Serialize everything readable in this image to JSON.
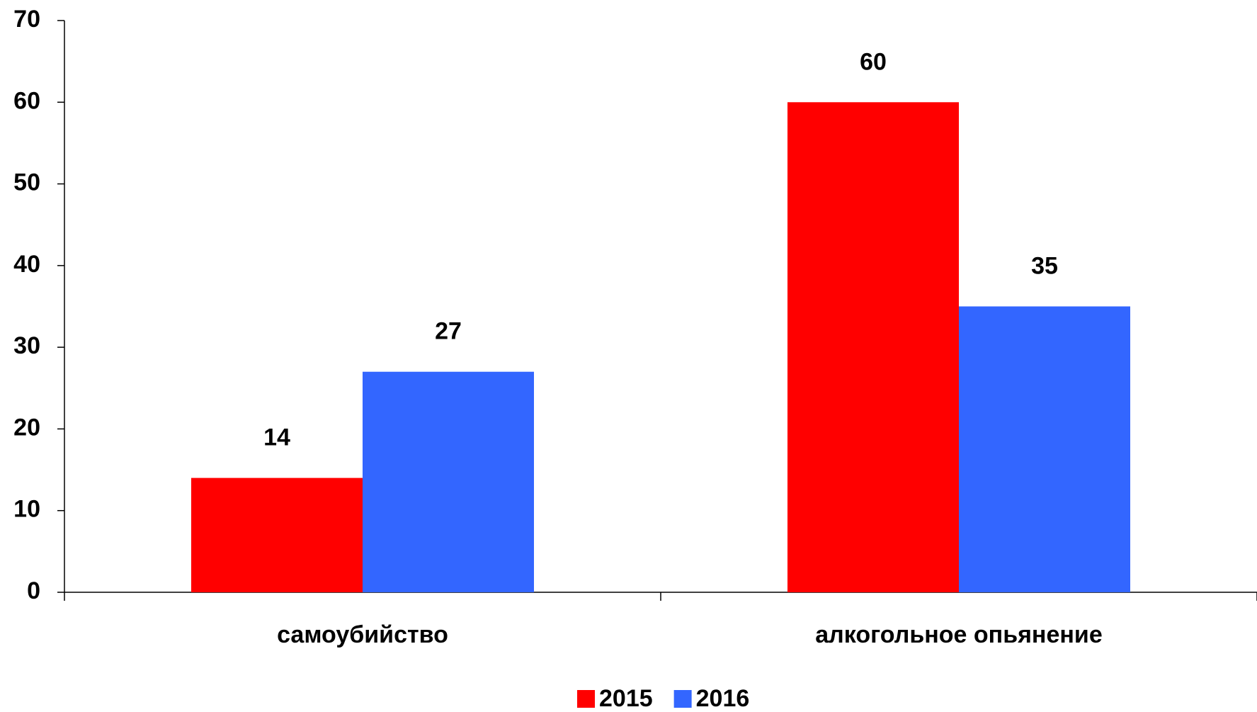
{
  "chart_data": {
    "type": "bar",
    "categories": [
      "самоубийство",
      "алкогольное опьянение"
    ],
    "series": [
      {
        "name": "2015",
        "color": "#ff0000",
        "values": [
          14,
          60
        ]
      },
      {
        "name": "2016",
        "color": "#3366ff",
        "values": [
          27,
          35
        ]
      }
    ],
    "ylim": [
      0,
      70
    ],
    "yticks": [
      0,
      10,
      20,
      30,
      40,
      50,
      60,
      70
    ],
    "legend": "bottom"
  }
}
